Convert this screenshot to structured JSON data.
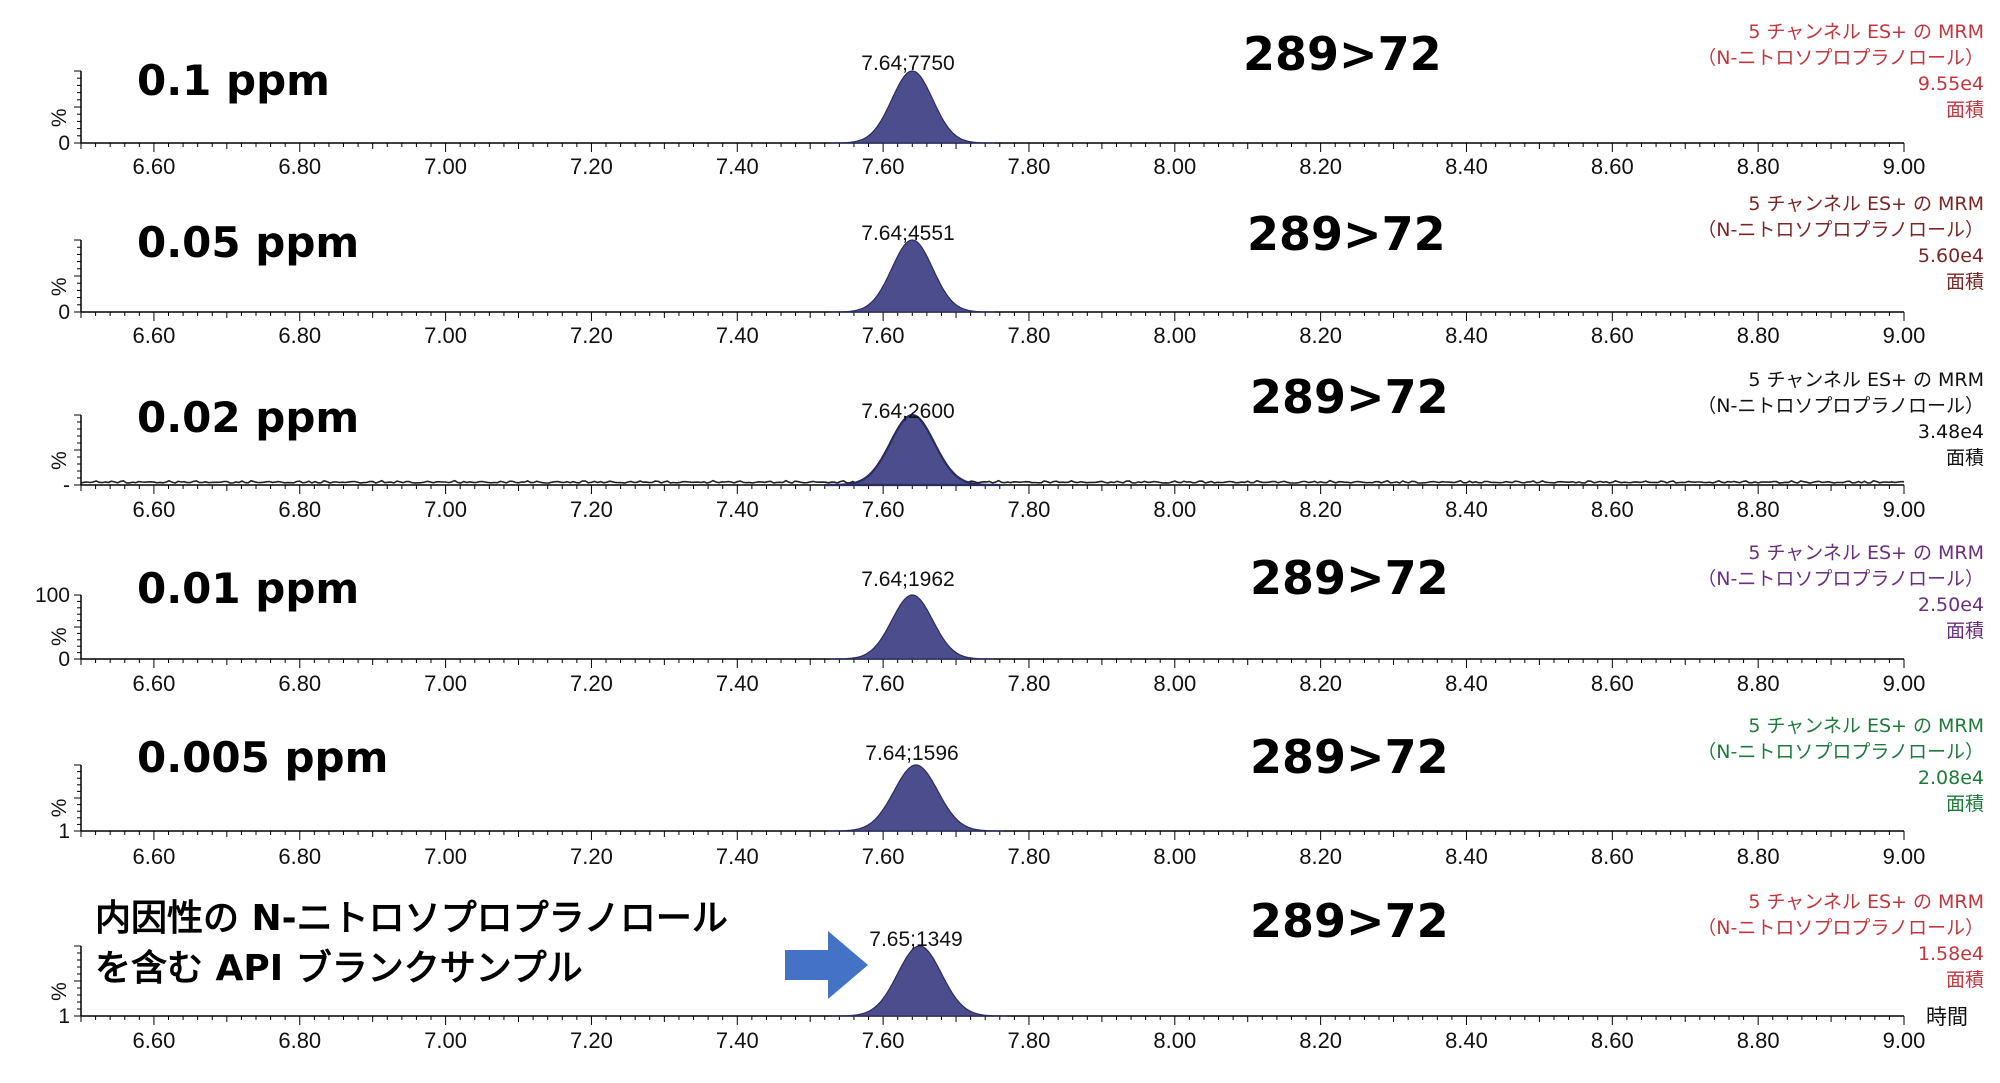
{
  "chart_data": [
    {
      "type": "area",
      "concentration_label": "0.1 ppm",
      "transition": "289>72",
      "peak_label": "7.64;7750",
      "peak": {
        "rt": 7.64,
        "area": 7750,
        "sigma": 0.028
      },
      "y_ticks": {
        "top": "",
        "bottom": "0"
      },
      "y_axis_label": "%",
      "info": [
        "5 チャンネル ES+ の MRM",
        "（N-ニトロソプロプラノロール）",
        "9.55e4",
        "面積"
      ],
      "info_color": "#c0373f",
      "x_ticks": [
        "6.60",
        "6.80",
        "7.00",
        "7.20",
        "7.40",
        "7.60",
        "7.80",
        "8.00",
        "8.20",
        "8.40",
        "8.60",
        "8.80",
        "9.00"
      ],
      "xlim": [
        6.5,
        9.0
      ],
      "noise": false
    },
    {
      "type": "area",
      "concentration_label": "0.05 ppm",
      "transition": "289>72",
      "peak_label": "7.64;4551",
      "peak": {
        "rt": 7.64,
        "area": 4551,
        "sigma": 0.028
      },
      "y_ticks": {
        "top": "",
        "bottom": "0"
      },
      "y_axis_label": "%",
      "info": [
        "5 チャンネル ES+ の MRM",
        "（N-ニトロソプロプラノロール）",
        "5.60e4",
        "面積"
      ],
      "info_color": "#7a2626",
      "x_ticks": [
        "6.60",
        "6.80",
        "7.00",
        "7.20",
        "7.40",
        "7.60",
        "7.80",
        "8.00",
        "8.20",
        "8.40",
        "8.60",
        "8.80",
        "9.00"
      ],
      "xlim": [
        6.5,
        9.0
      ],
      "noise": false
    },
    {
      "type": "area",
      "concentration_label": "0.02 ppm",
      "transition": "289>72",
      "peak_label": "7.64;2600",
      "peak": {
        "rt": 7.64,
        "area": 2600,
        "sigma": 0.03
      },
      "y_ticks": {
        "top": "",
        "bottom": "-"
      },
      "y_axis_label": "%",
      "info": [
        "5 チャンネル ES+ の MRM",
        "（N-ニトロソプロプラノロール）",
        "3.48e4",
        "面積"
      ],
      "info_color": "#111111",
      "x_ticks": [
        "6.60",
        "6.80",
        "7.00",
        "7.20",
        "7.40",
        "7.60",
        "7.80",
        "8.00",
        "8.20",
        "8.40",
        "8.60",
        "8.80",
        "9.00"
      ],
      "xlim": [
        6.5,
        9.0
      ],
      "noise": true
    },
    {
      "type": "area",
      "concentration_label": "0.01 ppm",
      "transition": "289>72",
      "peak_label": "7.64;1962",
      "peak": {
        "rt": 7.64,
        "area": 1962,
        "sigma": 0.028
      },
      "y_ticks": {
        "top": "100",
        "bottom": "0"
      },
      "y_axis_label": "%",
      "info": [
        "5 チャンネル ES+ の MRM",
        "（N-ニトロソプロプラノロール）",
        "2.50e4",
        "面積"
      ],
      "info_color": "#6b2f7e",
      "x_ticks": [
        "6.60",
        "6.80",
        "7.00",
        "7.20",
        "7.40",
        "7.60",
        "7.80",
        "8.00",
        "8.20",
        "8.40",
        "8.60",
        "8.80",
        "9.00"
      ],
      "xlim": [
        6.5,
        9.0
      ],
      "noise": false
    },
    {
      "type": "area",
      "concentration_label": "0.005 ppm",
      "transition": "289>72",
      "peak_label": "7.64;1596",
      "peak": {
        "rt": 7.645,
        "area": 1596,
        "sigma": 0.03
      },
      "y_ticks": {
        "top": "",
        "bottom": "1"
      },
      "y_axis_label": "%",
      "info": [
        "5 チャンネル ES+ の MRM",
        "（N-ニトロソプロプラノロール）",
        "2.08e4",
        "面積"
      ],
      "info_color": "#1e7a3a",
      "x_ticks": [
        "6.60",
        "6.80",
        "7.00",
        "7.20",
        "7.40",
        "7.60",
        "7.80",
        "8.00",
        "8.20",
        "8.40",
        "8.60",
        "8.80",
        "9.00"
      ],
      "xlim": [
        6.5,
        9.0
      ],
      "noise": false
    },
    {
      "type": "area",
      "concentration_label_lines": [
        "内因性の N-ニトロソプロプラノロール",
        "を含む API ブランクサンプル"
      ],
      "transition": "289>72",
      "peak_label": "7.65;1349",
      "peak": {
        "rt": 7.65,
        "area": 1349,
        "sigma": 0.03
      },
      "y_ticks": {
        "top": "",
        "bottom": "1"
      },
      "y_axis_label": "%",
      "info": [
        "5 チャンネル ES+ の MRM",
        "（N-ニトロソプロプラノロール）",
        "1.58e4",
        "面積"
      ],
      "info_color": "#c0373f",
      "x_axis_label": "時間",
      "arrow_color": "#4472c4",
      "x_ticks": [
        "6.60",
        "6.80",
        "7.00",
        "7.20",
        "7.40",
        "7.60",
        "7.80",
        "8.00",
        "8.20",
        "8.40",
        "8.60",
        "8.80",
        "9.00"
      ],
      "xlim": [
        6.5,
        9.0
      ],
      "noise": false
    }
  ],
  "colors": {
    "peak_fill": "#4b4d8c",
    "peak_stroke": "#2b2c5e",
    "axis": "#000000"
  }
}
